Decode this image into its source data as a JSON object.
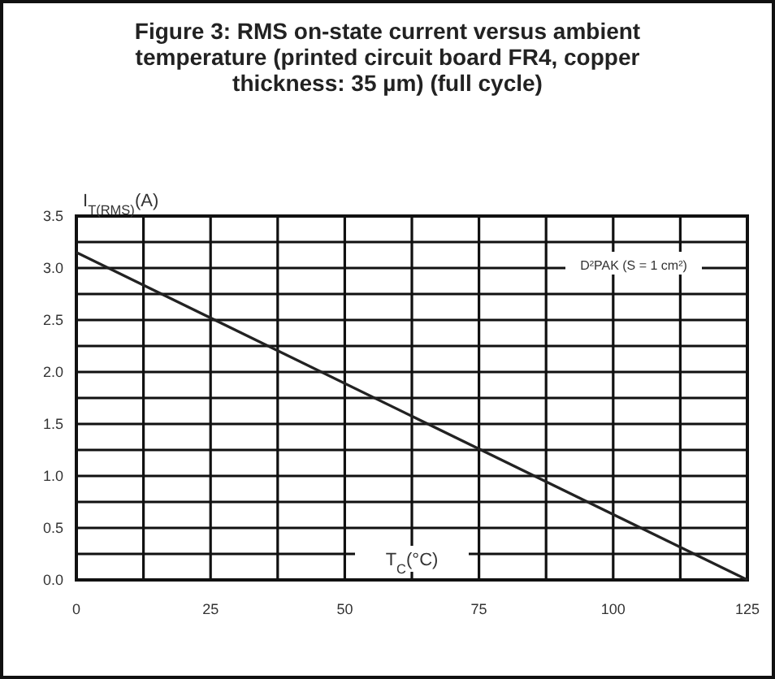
{
  "chart_data": {
    "type": "line",
    "title": "Figure 3: RMS on-state current versus ambient temperature (printed circuit board FR4, copper thickness: 35 µm) (full cycle)",
    "xlabel": "T$_{C}$(°C)",
    "ylabel": "I$_{T(RMS)}$(A)",
    "x": [
      0,
      125
    ],
    "series": [
      {
        "color": "#222222",
        "values": [
          3.15,
          0
        ]
      }
    ],
    "xlim": [
      0,
      125
    ],
    "ylim": [
      0,
      3.5
    ],
    "xticks": [
      0,
      {
        "value": 12.5,
        "label": null
      },
      25,
      {
        "value": 37.5,
        "label": null
      },
      50,
      {
        "value": 62.5,
        "label": null
      },
      75,
      {
        "value": 87.5,
        "label": null
      },
      100,
      {
        "value": 112.5,
        "label": null
      },
      125
    ],
    "yticks": [
      {
        "value": 0,
        "label": "0.0"
      },
      {
        "value": 0.25,
        "label": null
      },
      {
        "value": 0.5,
        "label": "0.5"
      },
      {
        "value": 0.75,
        "label": null
      },
      {
        "value": 1,
        "label": "1.0"
      },
      {
        "value": 1.25,
        "label": null
      },
      {
        "value": 1.5,
        "label": "1.5"
      },
      {
        "value": 1.75,
        "label": null
      },
      {
        "value": 2,
        "label": "2.0"
      },
      {
        "value": 2.25,
        "label": null
      },
      {
        "value": 2.5,
        "label": "2.5"
      },
      {
        "value": 2.75,
        "label": null
      },
      {
        "value": 3,
        "label": "3.0"
      },
      {
        "value": 3.25,
        "label": null
      },
      {
        "value": 3.5,
        "label": "3.5"
      }
    ],
    "annotations": [
      "D²PAK (S = 1 cm²)"
    ],
    "grid": true,
    "marker": "none",
    "line_style": "solid"
  }
}
